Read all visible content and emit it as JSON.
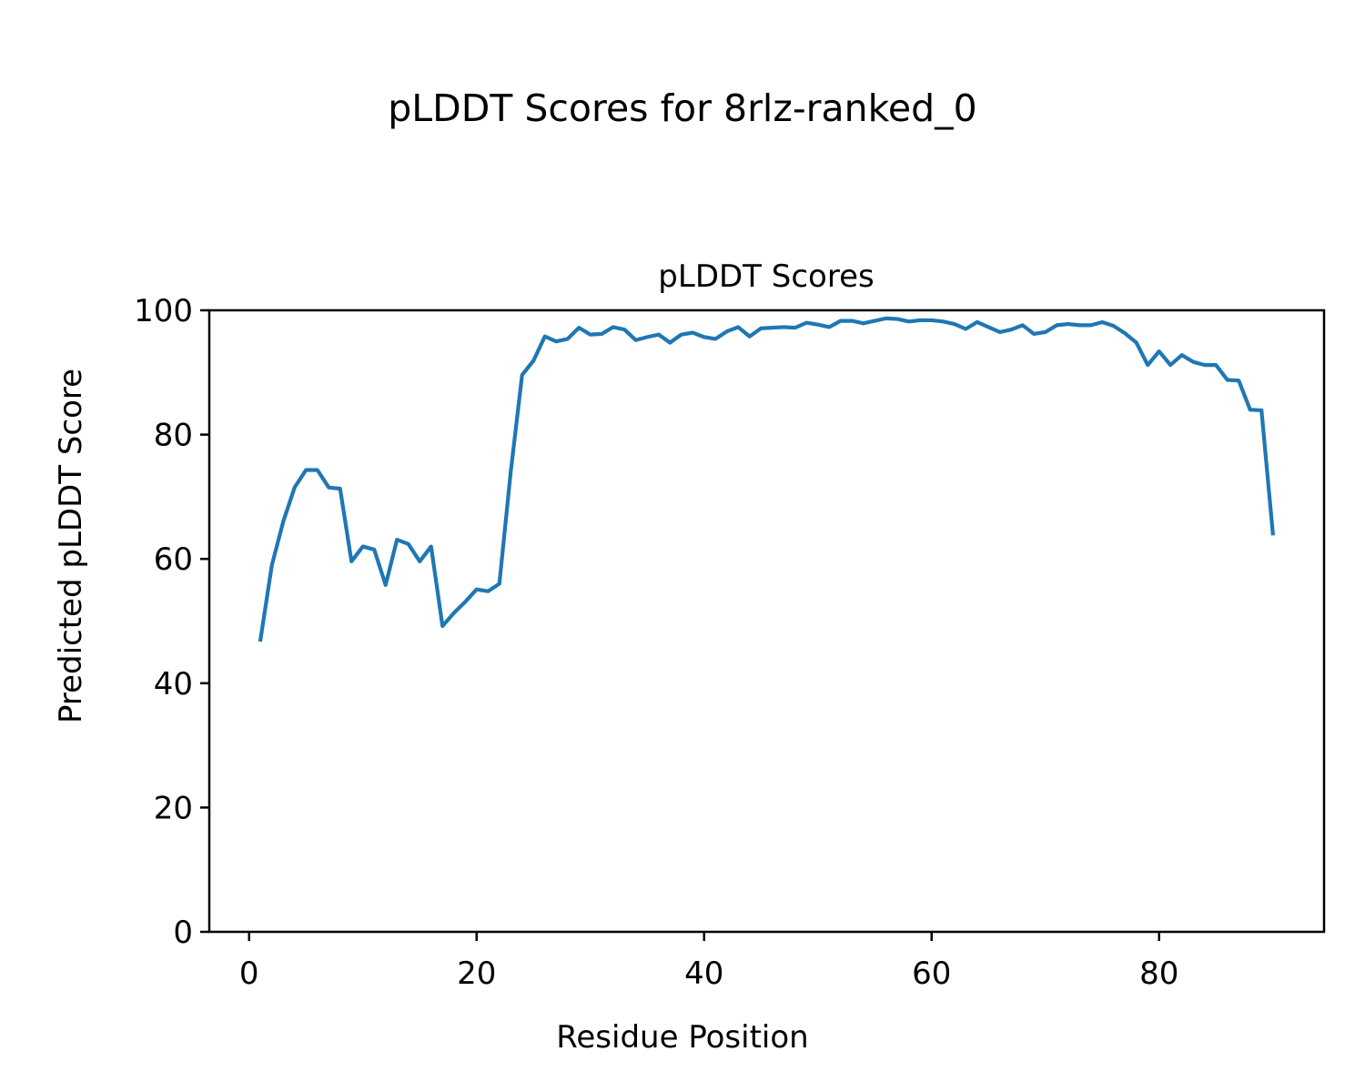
{
  "chart_data": {
    "type": "line",
    "suptitle": "pLDDT Scores for 8rlz-ranked_0",
    "title": "pLDDT Scores",
    "xlabel": "Residue Position",
    "ylabel": "Predicted pLDDT Score",
    "xlim": [
      -3.5,
      94.5
    ],
    "ylim": [
      0,
      100
    ],
    "xticks": [
      0,
      20,
      40,
      60,
      80
    ],
    "yticks": [
      0,
      20,
      40,
      60,
      80,
      100
    ],
    "grid": false,
    "legend": false,
    "line_color": "#1f77b4",
    "x": [
      1,
      2,
      3,
      4,
      5,
      6,
      7,
      8,
      9,
      10,
      11,
      12,
      13,
      14,
      15,
      16,
      17,
      18,
      19,
      20,
      21,
      22,
      23,
      24,
      25,
      26,
      27,
      28,
      29,
      30,
      31,
      32,
      33,
      34,
      35,
      36,
      37,
      38,
      39,
      40,
      41,
      42,
      43,
      44,
      45,
      46,
      47,
      48,
      49,
      50,
      51,
      52,
      53,
      54,
      55,
      56,
      57,
      58,
      59,
      60,
      61,
      62,
      63,
      64,
      65,
      66,
      67,
      68,
      69,
      70,
      71,
      72,
      73,
      74,
      75,
      76,
      77,
      78,
      79,
      80,
      81,
      82,
      83,
      84,
      85,
      86,
      87,
      88,
      89,
      90
    ],
    "y": [
      47.0,
      59.0,
      66.0,
      71.5,
      74.3,
      74.3,
      71.5,
      71.3,
      59.6,
      62.0,
      61.5,
      55.8,
      63.1,
      62.4,
      59.6,
      62.0,
      49.2,
      51.3,
      53.1,
      55.1,
      54.8,
      56.0,
      74.0,
      89.6,
      91.9,
      95.8,
      95.0,
      95.4,
      97.2,
      96.1,
      96.2,
      97.3,
      96.9,
      95.2,
      95.7,
      96.1,
      94.8,
      96.1,
      96.4,
      95.7,
      95.4,
      96.6,
      97.3,
      95.8,
      97.1,
      97.2,
      97.3,
      97.2,
      98.0,
      97.7,
      97.3,
      98.3,
      98.3,
      97.9,
      98.3,
      98.7,
      98.6,
      98.2,
      98.4,
      98.4,
      98.2,
      97.8,
      97.0,
      98.1,
      97.3,
      96.5,
      96.9,
      97.6,
      96.2,
      96.5,
      97.6,
      97.8,
      97.6,
      97.6,
      98.1,
      97.5,
      96.3,
      94.8,
      91.2,
      93.4,
      91.2,
      92.8,
      91.7,
      91.2,
      91.2,
      88.8,
      88.7,
      84.0,
      83.9,
      64.1
    ]
  }
}
